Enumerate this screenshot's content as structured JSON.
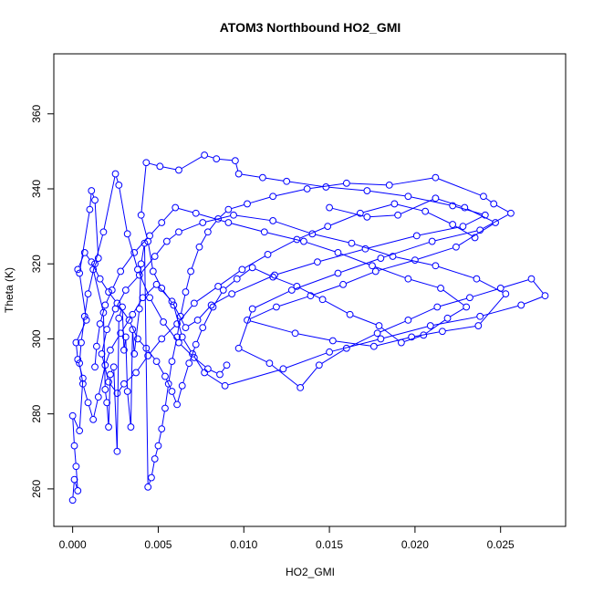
{
  "chart_data": {
    "type": "scatter",
    "title": "ATOM3 Northbound HO2_GMI",
    "xlabel": "HO2_GMI",
    "ylabel": "Theta (K)",
    "xlim": [
      -0.0011,
      0.0288
    ],
    "ylim": [
      250,
      376
    ],
    "xticks": [
      0.0,
      0.005,
      0.01,
      0.015,
      0.02,
      0.025
    ],
    "xtick_labels": [
      "0.000",
      "0.005",
      "0.010",
      "0.015",
      "0.020",
      "0.025"
    ],
    "yticks": [
      260,
      280,
      300,
      320,
      340,
      360
    ],
    "ytick_labels": [
      "260",
      "280",
      "300",
      "320",
      "340",
      "360"
    ],
    "grid": false,
    "series": [
      {
        "color": "#0000ff",
        "marker": "open-circle",
        "connected": true,
        "points": [
          [
            0.0,
            257.0
          ],
          [
            0.0001,
            262.5
          ],
          [
            0.0003,
            259.5
          ],
          [
            0.0002,
            266.0
          ],
          [
            0.0001,
            271.5
          ],
          [
            0.0,
            279.5
          ],
          [
            0.0004,
            275.5
          ],
          [
            0.0006,
            289.5
          ],
          [
            0.0003,
            294.5
          ],
          [
            0.0002,
            299.0
          ],
          [
            0.0008,
            305.0
          ],
          [
            0.0004,
            317.5
          ],
          [
            0.001,
            334.5
          ],
          [
            0.0011,
            339.5
          ],
          [
            0.0013,
            337.0
          ],
          [
            0.0015,
            321.5
          ],
          [
            0.0012,
            318.5
          ],
          [
            0.0018,
            307.0
          ],
          [
            0.0019,
            286.5
          ],
          [
            0.002,
            283.0
          ],
          [
            0.0021,
            276.5
          ],
          [
            0.0022,
            290.5
          ],
          [
            0.0024,
            292.5
          ],
          [
            0.0026,
            270.0
          ],
          [
            0.0027,
            305.5
          ],
          [
            0.0029,
            308.5
          ],
          [
            0.003,
            297.0
          ],
          [
            0.0031,
            300.5
          ],
          [
            0.0032,
            286.0
          ],
          [
            0.0034,
            276.5
          ],
          [
            0.0035,
            302.5
          ],
          [
            0.0036,
            296.0
          ],
          [
            0.0039,
            308.0
          ],
          [
            0.004,
            320.0
          ],
          [
            0.0042,
            325.5
          ],
          [
            0.0044,
            260.5
          ],
          [
            0.0046,
            263.0
          ],
          [
            0.0048,
            268.0
          ],
          [
            0.005,
            271.5
          ],
          [
            0.0052,
            276.0
          ],
          [
            0.0054,
            281.5
          ],
          [
            0.0056,
            288.0
          ],
          [
            0.0058,
            294.0
          ],
          [
            0.0061,
            300.5
          ],
          [
            0.0063,
            306.0
          ],
          [
            0.0066,
            312.5
          ],
          [
            0.0069,
            318.0
          ],
          [
            0.0074,
            324.5
          ],
          [
            0.0079,
            328.5
          ],
          [
            0.0085,
            332.0
          ],
          [
            0.0091,
            334.5
          ],
          [
            0.0102,
            336.0
          ],
          [
            0.0117,
            338.0
          ],
          [
            0.0137,
            340.0
          ],
          [
            0.016,
            341.5
          ],
          [
            0.0185,
            341.0
          ],
          [
            0.0212,
            343.0
          ],
          [
            0.024,
            338.0
          ],
          [
            0.0246,
            336.0
          ],
          [
            0.0256,
            333.5
          ],
          [
            0.0238,
            329.0
          ],
          [
            0.021,
            326.0
          ],
          [
            0.018,
            321.5
          ],
          [
            0.0155,
            317.5
          ],
          [
            0.0128,
            313.0
          ],
          [
            0.0105,
            308.0
          ],
          [
            0.0097,
            297.5
          ],
          [
            0.0115,
            293.5
          ],
          [
            0.0133,
            287.0
          ],
          [
            0.0144,
            293.0
          ],
          [
            0.016,
            297.5
          ],
          [
            0.0178,
            301.5
          ],
          [
            0.0196,
            305.0
          ],
          [
            0.0213,
            308.5
          ],
          [
            0.0232,
            311.0
          ],
          [
            0.025,
            313.5
          ],
          [
            0.0268,
            316.0
          ],
          [
            0.0276,
            311.5
          ],
          [
            0.0262,
            309.0
          ],
          [
            0.0238,
            306.0
          ],
          [
            0.0209,
            303.5
          ],
          [
            0.018,
            300.0
          ],
          [
            0.015,
            296.5
          ],
          [
            0.0123,
            292.0
          ],
          [
            0.0089,
            287.5
          ],
          [
            0.0077,
            291.0
          ],
          [
            0.007,
            296.0
          ],
          [
            0.0064,
            300.5
          ],
          [
            0.0059,
            309.0
          ],
          [
            0.0052,
            313.5
          ],
          [
            0.0047,
            318.0
          ],
          [
            0.0044,
            326.0
          ],
          [
            0.004,
            333.0
          ],
          [
            0.0043,
            347.0
          ],
          [
            0.0051,
            346.0
          ],
          [
            0.0062,
            345.0
          ],
          [
            0.0077,
            349.0
          ],
          [
            0.0084,
            348.0
          ],
          [
            0.0095,
            347.5
          ],
          [
            0.0097,
            344.0
          ],
          [
            0.0111,
            343.0
          ],
          [
            0.0125,
            342.0
          ],
          [
            0.0148,
            340.5
          ],
          [
            0.0172,
            339.5
          ],
          [
            0.0196,
            338.0
          ],
          [
            0.0222,
            335.5
          ],
          [
            0.0241,
            333.0
          ],
          [
            0.0228,
            330.0
          ],
          [
            0.0201,
            327.5
          ],
          [
            0.0171,
            324.0
          ],
          [
            0.0143,
            320.5
          ],
          [
            0.0118,
            317.0
          ],
          [
            0.0093,
            312.0
          ],
          [
            0.0081,
            309.0
          ],
          [
            0.0073,
            305.0
          ],
          [
            0.0066,
            303.0
          ],
          [
            0.0058,
            310.0
          ],
          [
            0.0049,
            314.5
          ],
          [
            0.0041,
            311.0
          ],
          [
            0.0035,
            306.5
          ],
          [
            0.0028,
            301.5
          ],
          [
            0.0022,
            297.0
          ],
          [
            0.0019,
            293.0
          ],
          [
            0.0015,
            284.5
          ],
          [
            0.0012,
            278.5
          ],
          [
            0.0009,
            283.0
          ],
          [
            0.0006,
            288.0
          ],
          [
            0.0004,
            293.5
          ],
          [
            0.0005,
            299.0
          ],
          [
            0.0007,
            306.0
          ],
          [
            0.0009,
            312.0
          ],
          [
            0.0013,
            320.0
          ],
          [
            0.0018,
            328.5
          ],
          [
            0.0025,
            344.0
          ],
          [
            0.0027,
            341.0
          ],
          [
            0.0032,
            328.0
          ],
          [
            0.0038,
            318.5
          ],
          [
            0.0045,
            311.0
          ],
          [
            0.0053,
            304.5
          ],
          [
            0.0062,
            299.0
          ],
          [
            0.0071,
            295.0
          ],
          [
            0.0079,
            292.0
          ],
          [
            0.0086,
            290.5
          ],
          [
            0.009,
            293.0
          ]
        ]
      },
      {
        "color": "#0000ff",
        "marker": "open-circle",
        "connected": true,
        "points": [
          [
            0.015,
            335.0
          ],
          [
            0.0172,
            332.5
          ],
          [
            0.019,
            333.0
          ],
          [
            0.0212,
            337.5
          ],
          [
            0.0229,
            335.0
          ],
          [
            0.0247,
            331.0
          ],
          [
            0.0224,
            324.5
          ],
          [
            0.02,
            321.0
          ],
          [
            0.0177,
            318.0
          ],
          [
            0.0158,
            314.5
          ],
          [
            0.0139,
            311.5
          ],
          [
            0.0119,
            308.5
          ],
          [
            0.0102,
            305.0
          ],
          [
            0.013,
            301.5
          ],
          [
            0.0152,
            299.5
          ],
          [
            0.0176,
            298.0
          ],
          [
            0.0198,
            300.5
          ],
          [
            0.0216,
            302.0
          ],
          [
            0.0237,
            303.5
          ],
          [
            0.0253,
            312.0
          ],
          [
            0.0236,
            316.0
          ],
          [
            0.0212,
            319.5
          ],
          [
            0.0187,
            322.0
          ],
          [
            0.0163,
            325.5
          ],
          [
            0.014,
            328.0
          ],
          [
            0.0117,
            331.5
          ],
          [
            0.0094,
            333.0
          ],
          [
            0.0076,
            331.0
          ],
          [
            0.0062,
            328.5
          ],
          [
            0.0055,
            326.0
          ],
          [
            0.0048,
            322.0
          ],
          [
            0.0039,
            317.0
          ],
          [
            0.0031,
            313.0
          ],
          [
            0.0025,
            308.0
          ],
          [
            0.002,
            302.5
          ],
          [
            0.0017,
            296.0
          ],
          [
            0.0021,
            288.5
          ],
          [
            0.0026,
            285.5
          ],
          [
            0.003,
            288.0
          ],
          [
            0.0037,
            291.0
          ],
          [
            0.0044,
            295.5
          ],
          [
            0.0052,
            300.0
          ],
          [
            0.0061,
            304.0
          ],
          [
            0.0071,
            309.5
          ],
          [
            0.0085,
            314.0
          ],
          [
            0.0099,
            318.5
          ],
          [
            0.0114,
            322.5
          ],
          [
            0.0131,
            326.5
          ],
          [
            0.0149,
            330.0
          ],
          [
            0.0168,
            333.5
          ],
          [
            0.0188,
            336.0
          ],
          [
            0.0206,
            334.0
          ],
          [
            0.0222,
            330.5
          ],
          [
            0.0235,
            327.0
          ]
        ]
      },
      {
        "color": "#0000ff",
        "marker": "open-circle",
        "connected": true,
        "points": [
          [
            0.0003,
            318.5
          ],
          [
            0.0007,
            323.0
          ],
          [
            0.0011,
            320.5
          ],
          [
            0.0016,
            316.0
          ],
          [
            0.0021,
            312.5
          ],
          [
            0.0026,
            309.5
          ],
          [
            0.0033,
            305.0
          ],
          [
            0.0038,
            300.0
          ],
          [
            0.0043,
            297.5
          ],
          [
            0.0049,
            294.0
          ],
          [
            0.0054,
            290.0
          ],
          [
            0.0058,
            286.0
          ],
          [
            0.0061,
            282.5
          ],
          [
            0.0064,
            287.5
          ],
          [
            0.0068,
            293.5
          ],
          [
            0.0072,
            298.5
          ],
          [
            0.0076,
            303.0
          ],
          [
            0.0082,
            308.5
          ],
          [
            0.0088,
            313.0
          ],
          [
            0.0096,
            316.0
          ],
          [
            0.0105,
            319.0
          ],
          [
            0.0117,
            316.5
          ],
          [
            0.0131,
            314.0
          ],
          [
            0.0146,
            310.5
          ],
          [
            0.0162,
            306.5
          ],
          [
            0.0179,
            303.5
          ],
          [
            0.0192,
            299.0
          ],
          [
            0.0205,
            301.0
          ],
          [
            0.0219,
            305.5
          ],
          [
            0.023,
            308.5
          ],
          [
            0.0215,
            313.5
          ],
          [
            0.0196,
            316.0
          ],
          [
            0.0175,
            319.5
          ],
          [
            0.0155,
            323.0
          ],
          [
            0.0135,
            326.0
          ],
          [
            0.0112,
            328.5
          ],
          [
            0.0091,
            331.0
          ],
          [
            0.0072,
            333.5
          ],
          [
            0.006,
            335.0
          ],
          [
            0.0052,
            331.0
          ],
          [
            0.0045,
            327.5
          ],
          [
            0.0036,
            323.0
          ],
          [
            0.0028,
            318.0
          ],
          [
            0.0023,
            313.0
          ],
          [
            0.0019,
            309.0
          ],
          [
            0.0016,
            304.0
          ],
          [
            0.0014,
            298.0
          ],
          [
            0.0013,
            292.5
          ]
        ]
      }
    ]
  }
}
